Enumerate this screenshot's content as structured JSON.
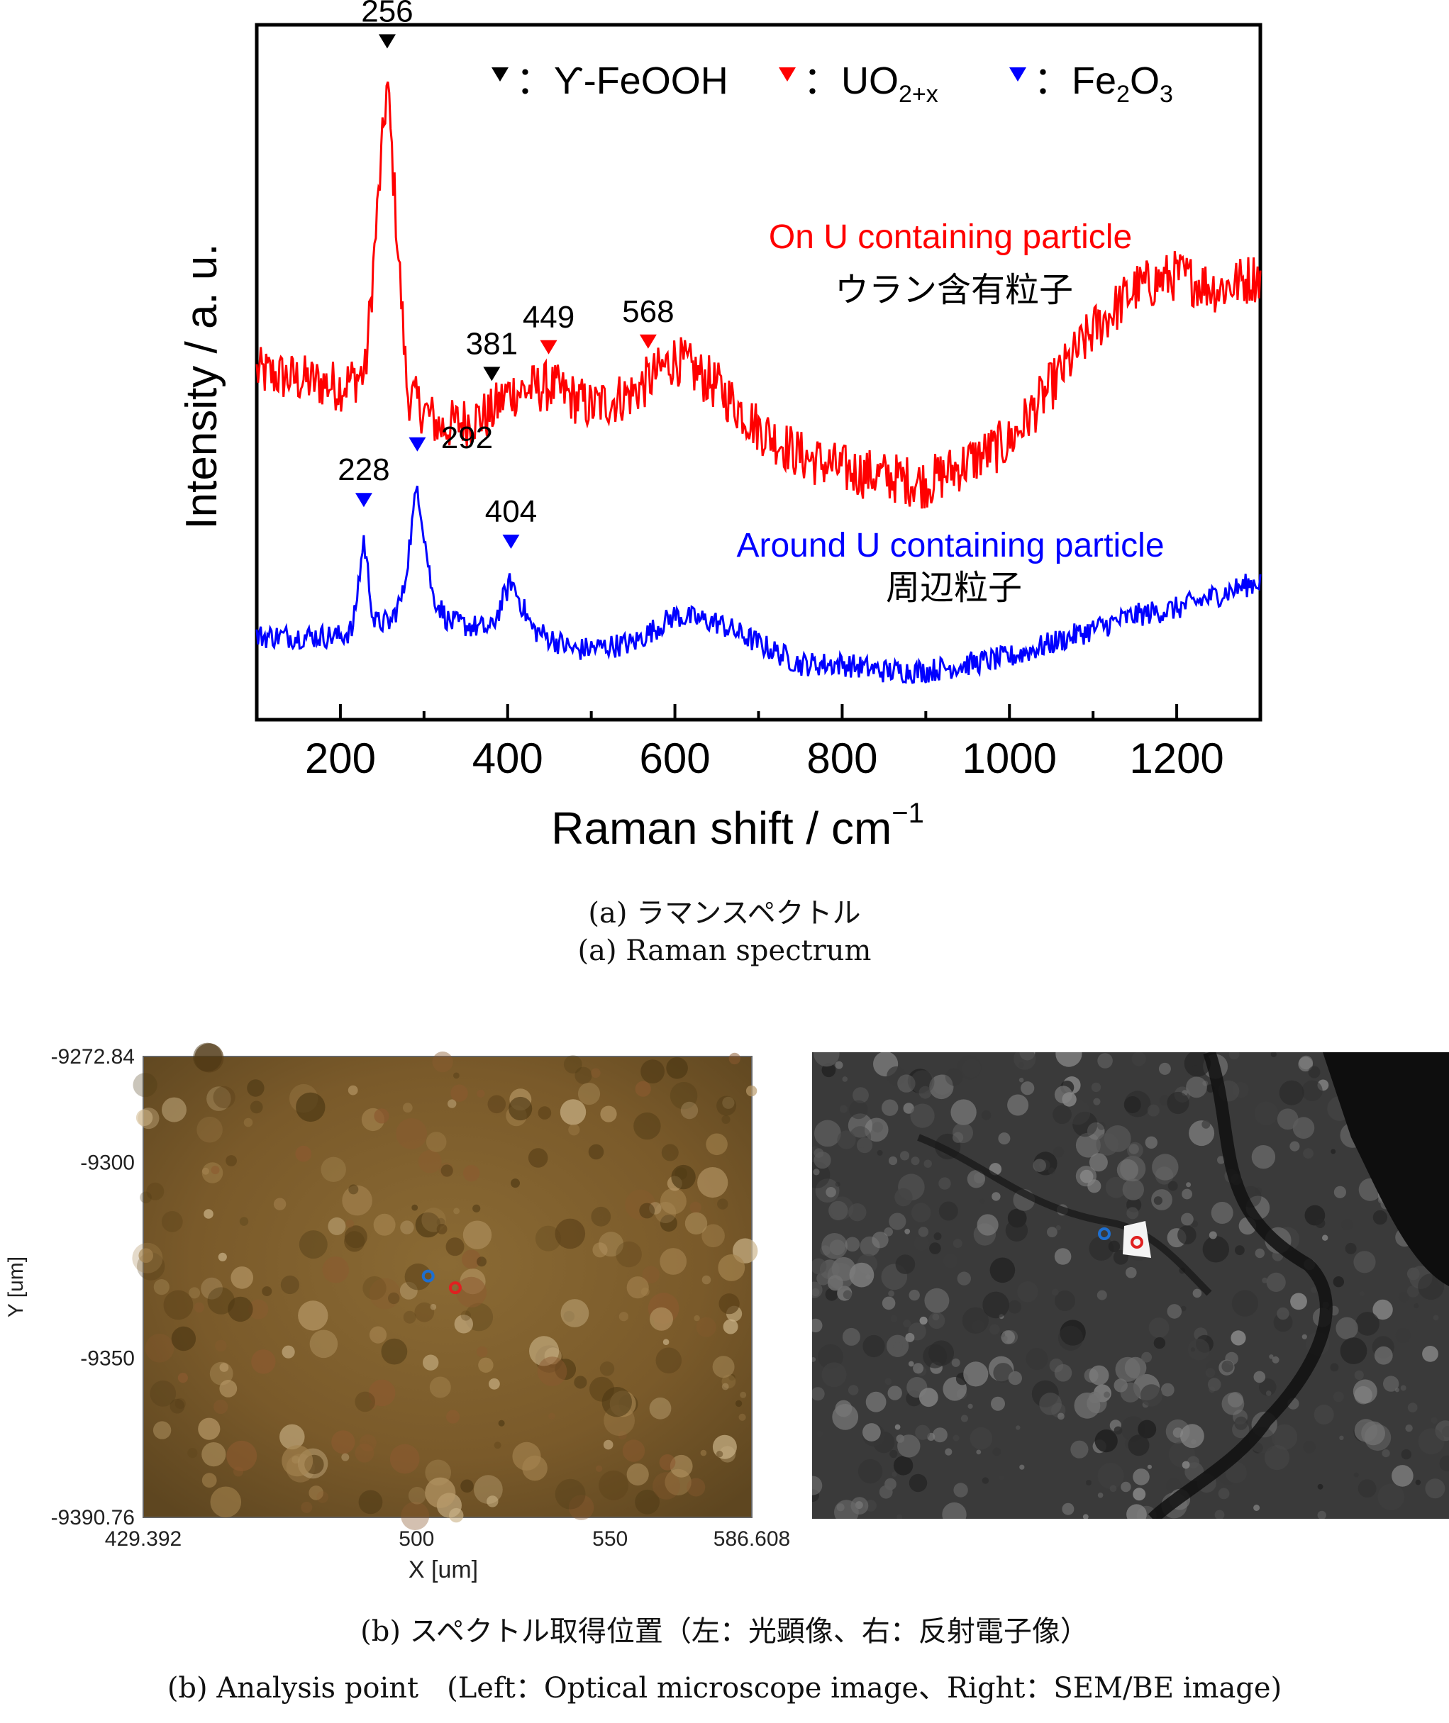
{
  "chart_data": {
    "type": "line",
    "title": "",
    "xlabel": "Raman shift / cm",
    "xlabel_sup": "−1",
    "ylabel": "Intensity / a. u.",
    "xlim": [
      100,
      1300
    ],
    "xticks": [
      200,
      400,
      600,
      800,
      1000,
      1200
    ],
    "y_ticks_shown": false,
    "legend": {
      "placement": "top",
      "entries": [
        {
          "marker_color": "#000000",
          "text": "Ƴ-FeOOH"
        },
        {
          "marker_color": "#ff0000",
          "text": "UO",
          "sub": "2+x"
        },
        {
          "marker_color": "#0000ff",
          "text": "Fe",
          "sub": "2",
          "text2": "O",
          "sub2": "3"
        }
      ],
      "colon": "："
    },
    "series": [
      {
        "name": "On U containing particle",
        "name_jp": "ウラン含有粒子",
        "color": "#ff0000",
        "baseline_points": [
          [
            100,
            0.5
          ],
          [
            200,
            0.48
          ],
          [
            230,
            0.5
          ],
          [
            256,
            0.92
          ],
          [
            280,
            0.47
          ],
          [
            320,
            0.42
          ],
          [
            380,
            0.44
          ],
          [
            400,
            0.47
          ],
          [
            450,
            0.48
          ],
          [
            500,
            0.45
          ],
          [
            550,
            0.47
          ],
          [
            600,
            0.52
          ],
          [
            650,
            0.48
          ],
          [
            700,
            0.42
          ],
          [
            750,
            0.38
          ],
          [
            800,
            0.36
          ],
          [
            850,
            0.35
          ],
          [
            900,
            0.34
          ],
          [
            950,
            0.37
          ],
          [
            1000,
            0.4
          ],
          [
            1050,
            0.48
          ],
          [
            1100,
            0.56
          ],
          [
            1150,
            0.62
          ],
          [
            1200,
            0.64
          ],
          [
            1250,
            0.62
          ],
          [
            1300,
            0.64
          ]
        ],
        "peaks": [
          {
            "x": 256,
            "label": "256",
            "marker": "#000000"
          },
          {
            "x": 381,
            "label": "381",
            "marker": "#000000"
          },
          {
            "x": 449,
            "label": "449",
            "marker": "#ff0000"
          },
          {
            "x": 568,
            "label": "568",
            "marker": "#ff0000"
          }
        ]
      },
      {
        "name": "Around U containing particle",
        "name_jp": "周辺粒子",
        "color": "#0000ff",
        "baseline_points": [
          [
            100,
            0.12
          ],
          [
            200,
            0.12
          ],
          [
            215,
            0.13
          ],
          [
            228,
            0.26
          ],
          [
            240,
            0.14
          ],
          [
            260,
            0.14
          ],
          [
            275,
            0.18
          ],
          [
            292,
            0.34
          ],
          [
            310,
            0.18
          ],
          [
            330,
            0.14
          ],
          [
            380,
            0.13
          ],
          [
            404,
            0.2
          ],
          [
            430,
            0.13
          ],
          [
            480,
            0.1
          ],
          [
            550,
            0.11
          ],
          [
            600,
            0.15
          ],
          [
            650,
            0.14
          ],
          [
            700,
            0.11
          ],
          [
            750,
            0.08
          ],
          [
            800,
            0.08
          ],
          [
            850,
            0.07
          ],
          [
            900,
            0.07
          ],
          [
            950,
            0.08
          ],
          [
            1000,
            0.09
          ],
          [
            1050,
            0.11
          ],
          [
            1100,
            0.13
          ],
          [
            1150,
            0.15
          ],
          [
            1200,
            0.16
          ],
          [
            1250,
            0.18
          ],
          [
            1300,
            0.2
          ]
        ],
        "peaks": [
          {
            "x": 228,
            "label": "228",
            "marker": "#0000ff"
          },
          {
            "x": 292,
            "label": "292",
            "marker": "#0000ff"
          },
          {
            "x": 404,
            "label": "404",
            "marker": "#0000ff"
          }
        ]
      }
    ]
  },
  "captions": {
    "a_jp": "(a) ラマンスペクトル",
    "a_en": "(a) Raman spectrum",
    "b_jp": "(b) スペクトル取得位置（左：光顕像、右：反射電子像）",
    "b_en": "(b) Analysis point　(Left：Optical microscope image、Right：SEM/BE image)"
  },
  "optical": {
    "x_label": "X [um]",
    "y_label": "Y [um]",
    "x_ticks": [
      "429.392",
      "500",
      "550",
      "586.608"
    ],
    "y_ticks": [
      "-9272.84",
      "-9300",
      "-9350",
      "-9390.76"
    ],
    "x_range": [
      429.392,
      586.608
    ],
    "y_range": [
      -9390.76,
      -9272.84
    ],
    "points": [
      {
        "x": 503,
        "y": -9329,
        "color": "#1e6fd0"
      },
      {
        "x": 510,
        "y": -9332,
        "color": "#e02020"
      }
    ],
    "bg_color": "#7a5a2a"
  },
  "sem": {
    "bg_color": "#3a3a3a",
    "points": [
      {
        "color": "#1e6fd0"
      },
      {
        "color": "#e02020"
      }
    ]
  }
}
